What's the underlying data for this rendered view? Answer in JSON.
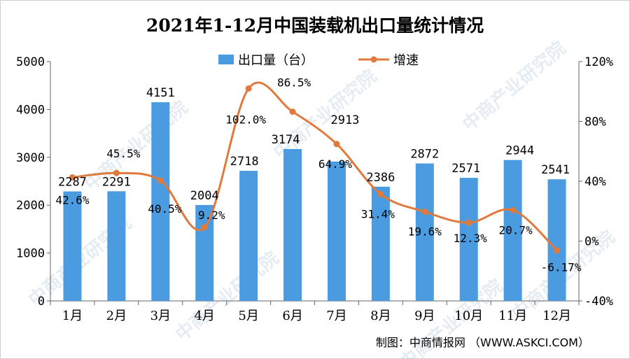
{
  "chart_data": {
    "type": "bar",
    "title": "2021年1-12月中国装载机出口量统计情况",
    "categories": [
      "1月",
      "2月",
      "3月",
      "4月",
      "5月",
      "6月",
      "7月",
      "8月",
      "9月",
      "10月",
      "11月",
      "12月"
    ],
    "series": [
      {
        "name": "出口量（台）",
        "type": "bar",
        "axis": "left",
        "color": "#4a9be0",
        "values": [
          2287,
          2291,
          4151,
          2004,
          2718,
          3174,
          2913,
          2386,
          2872,
          2571,
          2944,
          2541
        ],
        "labels": [
          "2287",
          "2291",
          "4151",
          "2004",
          "2718",
          "3174",
          "2913",
          "2386",
          "2872",
          "2571",
          "2944",
          "2541"
        ]
      },
      {
        "name": "增速",
        "type": "line",
        "axis": "right",
        "color": "#e07a3c",
        "values": [
          42.6,
          45.5,
          40.5,
          9.2,
          102.0,
          86.5,
          64.9,
          31.4,
          19.6,
          12.3,
          20.7,
          -6.17
        ],
        "labels": [
          "42.6%",
          "45.5%",
          "40.5%",
          "9.2%",
          "102.0%",
          "86.5%",
          "64.9%",
          "31.4%",
          "19.6%",
          "12.3%",
          "20.7%",
          "-6.17%"
        ]
      }
    ],
    "y_left": {
      "min": 0,
      "max": 5000,
      "ticks": [
        "0",
        "1000",
        "2000",
        "3000",
        "4000",
        "5000"
      ]
    },
    "y_right": {
      "min": -40,
      "max": 120,
      "ticks": [
        "-40%",
        "0%",
        "40%",
        "80%",
        "120%"
      ]
    },
    "legend_position": "top-center",
    "grid": false
  },
  "credit": "制图：中商情报网 （WWW.ASKCI.COM）",
  "watermark": "中商产业研究院"
}
